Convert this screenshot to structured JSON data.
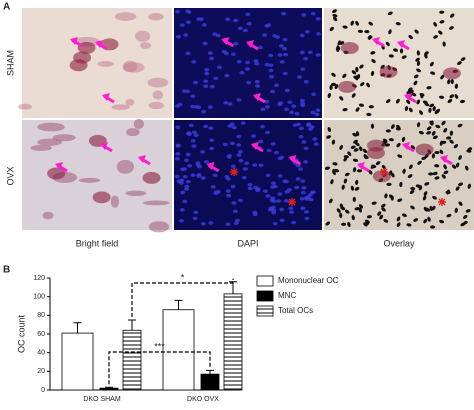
{
  "panel_a": {
    "letter": "A",
    "rows": [
      "SHAM",
      "OVX"
    ],
    "columns": [
      "Bright field",
      "DAPI",
      "Overlay"
    ]
  },
  "chart_data": {
    "type": "bar",
    "panel_letter": "B",
    "ylabel": "OC count",
    "categories": [
      "DKO SHAM",
      "DKO OVX"
    ],
    "series": [
      {
        "name": "Mononuclear OC",
        "color": "#ffffff",
        "values": [
          61,
          86
        ],
        "errors": [
          11,
          10
        ]
      },
      {
        "name": "MNC",
        "color": "#000000",
        "values": [
          2,
          17
        ],
        "errors": [
          1,
          4
        ]
      },
      {
        "name": "Total OCs",
        "color": "#ffffff",
        "hatch": "horizontal",
        "values": [
          64,
          103
        ],
        "errors": [
          11,
          13
        ]
      }
    ],
    "ylim": [
      0,
      120
    ],
    "yticks": [
      0,
      20,
      40,
      60,
      80,
      100,
      120
    ],
    "annotations": [
      "*",
      "***"
    ]
  }
}
